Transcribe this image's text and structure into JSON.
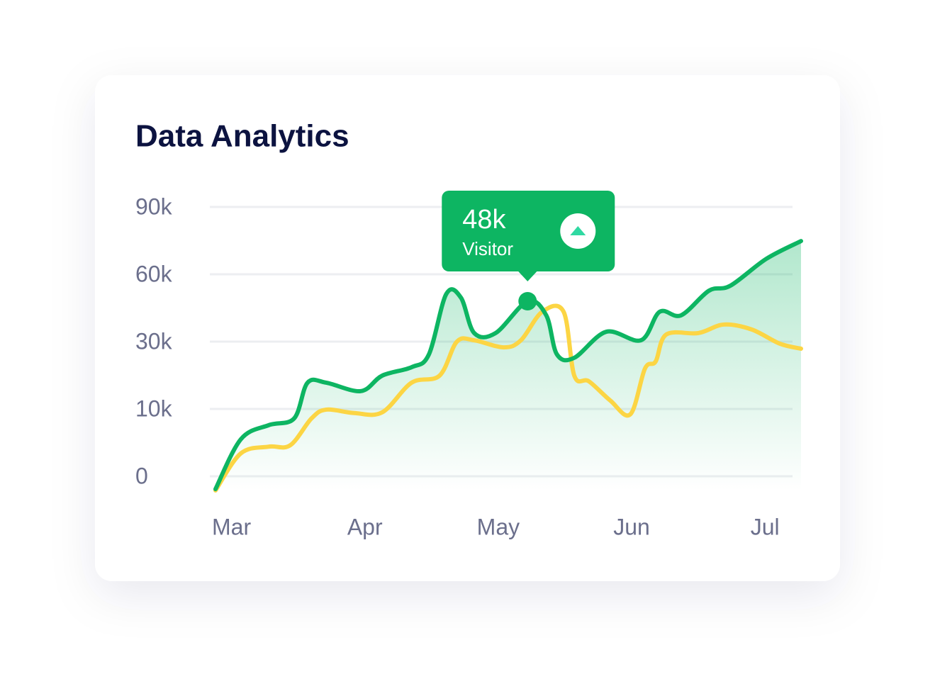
{
  "chart_data": {
    "type": "line",
    "title": "Data Analytics",
    "xlim": [
      -0.12,
      4.27
    ],
    "xticks": [
      {
        "value": 0,
        "label": "Mar"
      },
      {
        "value": 1,
        "label": "Apr"
      },
      {
        "value": 2,
        "label": "May"
      },
      {
        "value": 3,
        "label": "Jun"
      },
      {
        "value": 4,
        "label": "Jul"
      }
    ],
    "ylim": [
      -2100,
      90000
    ],
    "yticks": [
      0,
      {
        "value": 10000,
        "label": "10k"
      },
      {
        "value": 30000,
        "label": "30k"
      },
      {
        "value": 60000,
        "label": "60k"
      },
      {
        "value": 90000,
        "label": "90k"
      }
    ],
    "grid": true,
    "series": [
      {
        "color": "#0db562",
        "area": true,
        "x": [
          -0.12,
          0.07,
          0.28,
          0.47,
          0.57,
          0.71,
          0.97,
          1.13,
          1.35,
          1.48,
          1.61,
          1.72,
          1.82,
          1.98,
          2.22,
          2.36,
          2.44,
          2.57,
          2.81,
          3.07,
          3.21,
          3.37,
          3.58,
          3.74,
          4.01,
          4.27
        ],
        "values": [
          -1900,
          5500,
          7600,
          8600,
          17800,
          17800,
          15300,
          19900,
          22400,
          26200,
          51200,
          49600,
          33800,
          33800,
          48000,
          41700,
          26200,
          25200,
          34400,
          30600,
          43300,
          41700,
          52700,
          54900,
          66900,
          74800
        ]
      },
      {
        "color": "#fcd544",
        "x": [
          -0.12,
          0.07,
          0.28,
          0.44,
          0.6,
          0.71,
          0.92,
          1.13,
          1.35,
          1.56,
          1.69,
          1.82,
          2.04,
          2.17,
          2.33,
          2.49,
          2.57,
          2.68,
          2.84,
          2.99,
          3.1,
          3.18,
          3.26,
          3.5,
          3.69,
          3.9,
          4.11,
          4.27
        ],
        "values": [
          -2100,
          3400,
          4400,
          4600,
          8600,
          9900,
          9400,
          9500,
          17800,
          19900,
          30000,
          30600,
          28300,
          30600,
          43300,
          43300,
          19900,
          18200,
          12500,
          9200,
          22000,
          24100,
          33200,
          33800,
          37600,
          35400,
          29400,
          27900
        ]
      }
    ],
    "tooltip": {
      "x": 2.22,
      "value": 48000,
      "label": "48k",
      "caption": "Visitor"
    }
  }
}
